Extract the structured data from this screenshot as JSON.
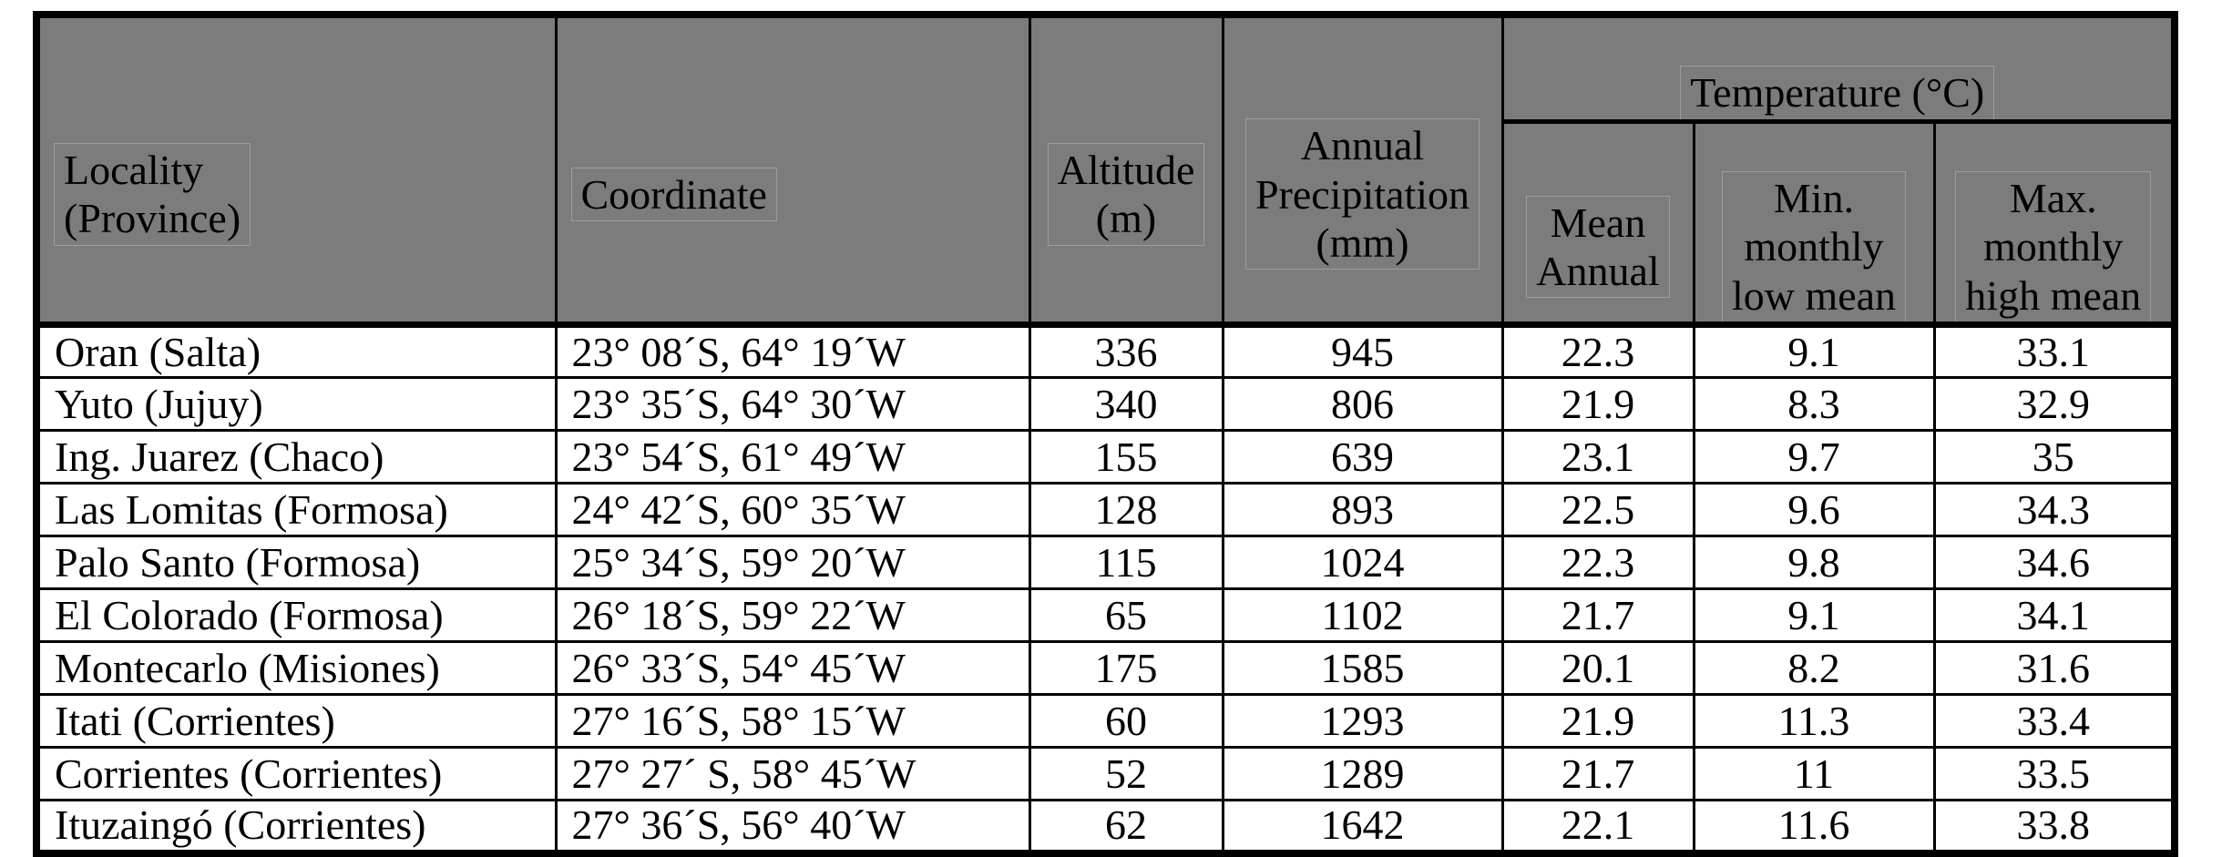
{
  "colors": {
    "header_bg": "#7c7c7c",
    "border": "#000000",
    "row_bg": "#ffffff"
  },
  "table": {
    "header": {
      "locality": "Locality\n(Province)",
      "coordinate": "Coordinate",
      "altitude": "Altitude\n(m)",
      "precipitation": "Annual\nPrecipitation\n(mm)",
      "temperature_group": "Temperature (°C)",
      "temp_mean": "Mean\nAnnual",
      "temp_min": "Min.\nmonthly\nlow mean",
      "temp_max": "Max.\nmonthly\nhigh mean"
    },
    "rows": [
      {
        "locality": "Oran (Salta)",
        "coordinate": "23° 08´S, 64° 19´W",
        "altitude": "336",
        "precipitation": "945",
        "temp_mean_annual": "22.3",
        "temp_min_monthly_low": "9.1",
        "temp_max_monthly_high": "33.1"
      },
      {
        "locality": "Yuto (Jujuy)",
        "coordinate": "23° 35´S, 64° 30´W",
        "altitude": "340",
        "precipitation": "806",
        "temp_mean_annual": "21.9",
        "temp_min_monthly_low": "8.3",
        "temp_max_monthly_high": "32.9"
      },
      {
        "locality": "Ing. Juarez (Chaco)",
        "coordinate": "23° 54´S, 61° 49´W",
        "altitude": "155",
        "precipitation": "639",
        "temp_mean_annual": "23.1",
        "temp_min_monthly_low": "9.7",
        "temp_max_monthly_high": "35"
      },
      {
        "locality": "Las Lomitas (Formosa)",
        "coordinate": "24° 42´S, 60° 35´W",
        "altitude": "128",
        "precipitation": "893",
        "temp_mean_annual": "22.5",
        "temp_min_monthly_low": "9.6",
        "temp_max_monthly_high": "34.3"
      },
      {
        "locality": "Palo Santo (Formosa)",
        "coordinate": "25° 34´S, 59° 20´W",
        "altitude": "115",
        "precipitation": "1024",
        "temp_mean_annual": "22.3",
        "temp_min_monthly_low": "9.8",
        "temp_max_monthly_high": "34.6"
      },
      {
        "locality": "El Colorado (Formosa)",
        "coordinate": "26° 18´S, 59° 22´W",
        "altitude": "65",
        "precipitation": "1102",
        "temp_mean_annual": "21.7",
        "temp_min_monthly_low": "9.1",
        "temp_max_monthly_high": "34.1"
      },
      {
        "locality": "Montecarlo (Misiones)",
        "coordinate": "26° 33´S, 54° 45´W",
        "altitude": "175",
        "precipitation": "1585",
        "temp_mean_annual": "20.1",
        "temp_min_monthly_low": "8.2",
        "temp_max_monthly_high": "31.6"
      },
      {
        "locality": "Itati (Corrientes)",
        "coordinate": "27° 16´S, 58° 15´W",
        "altitude": "60",
        "precipitation": "1293",
        "temp_mean_annual": "21.9",
        "temp_min_monthly_low": "11.3",
        "temp_max_monthly_high": "33.4"
      },
      {
        "locality": "Corrientes (Corrientes)",
        "coordinate": "27° 27´ S, 58° 45´W",
        "altitude": "52",
        "precipitation": "1289",
        "temp_mean_annual": "21.7",
        "temp_min_monthly_low": "11",
        "temp_max_monthly_high": "33.5"
      },
      {
        "locality": "Ituzaingó (Corrientes)",
        "coordinate": "27° 36´S, 56° 40´W",
        "altitude": "62",
        "precipitation": "1642",
        "temp_mean_annual": "22.1",
        "temp_min_monthly_low": "11.6",
        "temp_max_monthly_high": "33.8"
      }
    ]
  }
}
